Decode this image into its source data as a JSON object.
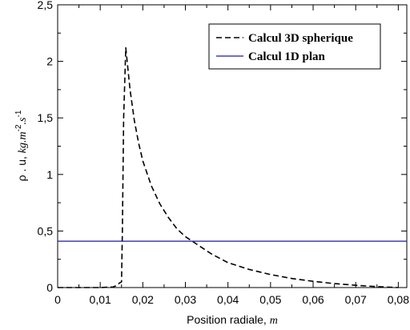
{
  "chart_data": {
    "type": "line",
    "xlabel_prefix": "Position radiale, ",
    "xlabel_unit": "m",
    "ylabel": {
      "base": "ρ . u,  ",
      "unit_a": "kg.m",
      "sup_a": "-2",
      "unit_b": ".s",
      "sup_b": "-1"
    },
    "xlim": [
      0,
      0.082
    ],
    "ylim": [
      0,
      2.5
    ],
    "x_ticks": [
      {
        "value": 0,
        "label": "0"
      },
      {
        "value": 0.01,
        "label": "0,01"
      },
      {
        "value": 0.02,
        "label": "0,02"
      },
      {
        "value": 0.03,
        "label": "0,03"
      },
      {
        "value": 0.04,
        "label": "0,04"
      },
      {
        "value": 0.05,
        "label": "0,05"
      },
      {
        "value": 0.06,
        "label": "0,06"
      },
      {
        "value": 0.07,
        "label": "0,07"
      },
      {
        "value": 0.08,
        "label": "0,08"
      }
    ],
    "y_ticks": [
      {
        "value": 0,
        "label": "0"
      },
      {
        "value": 0.5,
        "label": "0,5"
      },
      {
        "value": 1,
        "label": "1"
      },
      {
        "value": 1.5,
        "label": "1,5"
      },
      {
        "value": 2,
        "label": "2"
      },
      {
        "value": 2.5,
        "label": "2,5"
      }
    ],
    "grid": false,
    "legend_position": "top-right",
    "series": [
      {
        "name": "Calcul 3D spherique",
        "style": "dashed",
        "color": "#000000",
        "x": [
          0,
          0.01,
          0.013,
          0.014,
          0.0145,
          0.015,
          0.0152,
          0.0155,
          0.016,
          0.017,
          0.018,
          0.019,
          0.02,
          0.022,
          0.024,
          0.026,
          0.028,
          0.03,
          0.032,
          0.034,
          0.036,
          0.038,
          0.04,
          0.045,
          0.05,
          0.055,
          0.06,
          0.065,
          0.07,
          0.075,
          0.08
        ],
        "y": [
          0,
          0,
          0.005,
          0.02,
          0.04,
          0.05,
          0.5,
          1.5,
          2.12,
          1.75,
          1.48,
          1.28,
          1.12,
          0.9,
          0.74,
          0.62,
          0.52,
          0.45,
          0.4,
          0.35,
          0.3,
          0.26,
          0.22,
          0.16,
          0.115,
          0.08,
          0.055,
          0.035,
          0.02,
          0.008,
          0
        ]
      },
      {
        "name": "Calcul 1D plan",
        "style": "solid",
        "color": "#1a1aa6",
        "x": [
          0,
          0.082
        ],
        "y": [
          0.41,
          0.41
        ]
      }
    ]
  }
}
